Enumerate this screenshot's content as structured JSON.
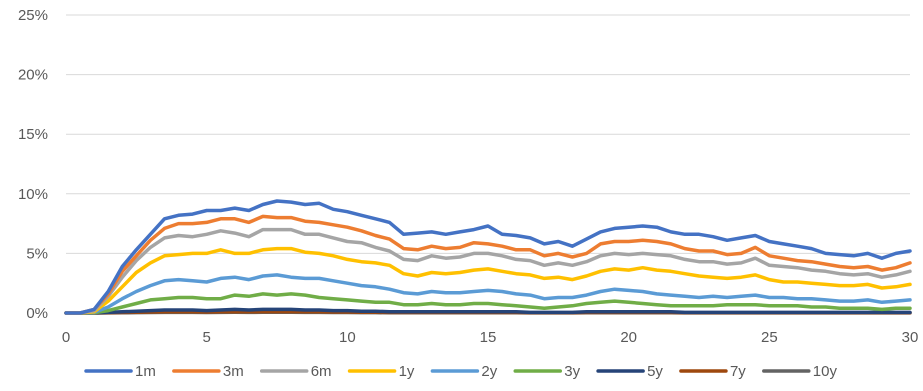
{
  "chart_data": {
    "type": "line",
    "title": "",
    "xlabel": "",
    "ylabel": "",
    "xlim": [
      0,
      30
    ],
    "ylim": [
      0,
      25
    ],
    "x_ticks": [
      0,
      5,
      10,
      15,
      20,
      25,
      30
    ],
    "y_ticks": [
      0,
      5,
      10,
      15,
      20,
      25
    ],
    "y_tick_labels": [
      "0%",
      "5%",
      "10%",
      "15%",
      "20%",
      "25%"
    ],
    "y_unit": "%",
    "grid": "horizontal",
    "legend_position": "bottom",
    "x": [
      0,
      0.5,
      1,
      1.5,
      2,
      2.5,
      3,
      3.5,
      4,
      4.5,
      5,
      5.5,
      6,
      6.5,
      7,
      7.5,
      8,
      8.5,
      9,
      9.5,
      10,
      10.5,
      11,
      11.5,
      12,
      12.5,
      13,
      13.5,
      14,
      14.5,
      15,
      15.5,
      16,
      16.5,
      17,
      17.5,
      18,
      18.5,
      19,
      19.5,
      20,
      20.5,
      21,
      21.5,
      22,
      22.5,
      23,
      23.5,
      24,
      24.5,
      25,
      25.5,
      26,
      26.5,
      27,
      27.5,
      28,
      28.5,
      29,
      29.5,
      30
    ],
    "series": [
      {
        "name": "1m",
        "color": "#4472C4",
        "values": [
          0,
          0,
          0.3,
          1.8,
          3.9,
          5.3,
          6.6,
          7.9,
          8.2,
          8.3,
          8.6,
          8.6,
          8.8,
          8.6,
          9.1,
          9.4,
          9.3,
          9.1,
          9.2,
          8.7,
          8.5,
          8.2,
          7.9,
          7.6,
          6.6,
          6.7,
          6.8,
          6.6,
          6.8,
          7.0,
          7.3,
          6.6,
          6.5,
          6.3,
          5.8,
          6.0,
          5.6,
          6.2,
          6.8,
          7.1,
          7.2,
          7.3,
          7.2,
          6.8,
          6.6,
          6.6,
          6.4,
          6.1,
          6.3,
          6.5,
          6.0,
          5.8,
          5.6,
          5.4,
          5.0,
          4.9,
          4.8,
          5.0,
          4.6,
          5.0,
          5.2
        ]
      },
      {
        "name": "3m",
        "color": "#ED7D31",
        "values": [
          0,
          0,
          0.3,
          1.6,
          3.5,
          4.8,
          6.1,
          7.1,
          7.5,
          7.5,
          7.6,
          7.9,
          7.9,
          7.6,
          8.1,
          8.0,
          8.0,
          7.7,
          7.6,
          7.4,
          7.2,
          6.9,
          6.5,
          6.2,
          5.4,
          5.3,
          5.6,
          5.4,
          5.5,
          5.9,
          5.8,
          5.6,
          5.3,
          5.3,
          4.8,
          5.0,
          4.7,
          5.0,
          5.8,
          6.0,
          6.0,
          6.1,
          6.0,
          5.8,
          5.4,
          5.2,
          5.2,
          4.9,
          5.0,
          5.5,
          4.8,
          4.6,
          4.4,
          4.3,
          4.1,
          3.9,
          3.8,
          3.9,
          3.6,
          3.8,
          4.2
        ]
      },
      {
        "name": "6m",
        "color": "#A5A5A5",
        "values": [
          0,
          0,
          0.2,
          1.4,
          3.0,
          4.4,
          5.5,
          6.3,
          6.5,
          6.4,
          6.6,
          6.9,
          6.7,
          6.4,
          7.0,
          7.0,
          7.0,
          6.6,
          6.6,
          6.3,
          6.0,
          5.9,
          5.5,
          5.2,
          4.5,
          4.4,
          4.8,
          4.6,
          4.7,
          5.0,
          5.0,
          4.8,
          4.5,
          4.4,
          4.0,
          4.2,
          4.0,
          4.3,
          4.8,
          5.0,
          4.9,
          5.0,
          4.9,
          4.8,
          4.5,
          4.3,
          4.3,
          4.1,
          4.2,
          4.6,
          4.0,
          3.9,
          3.8,
          3.6,
          3.5,
          3.3,
          3.2,
          3.3,
          3.0,
          3.2,
          3.5
        ]
      },
      {
        "name": "1y",
        "color": "#FFC000",
        "values": [
          0,
          0,
          0.1,
          1.0,
          2.2,
          3.4,
          4.2,
          4.8,
          4.9,
          5.0,
          5.0,
          5.3,
          5.0,
          5.0,
          5.3,
          5.4,
          5.4,
          5.1,
          5.0,
          4.8,
          4.5,
          4.3,
          4.2,
          4.0,
          3.3,
          3.1,
          3.4,
          3.3,
          3.4,
          3.6,
          3.7,
          3.5,
          3.3,
          3.2,
          2.9,
          3.0,
          2.8,
          3.1,
          3.5,
          3.7,
          3.6,
          3.8,
          3.6,
          3.5,
          3.3,
          3.1,
          3.0,
          2.9,
          3.0,
          3.2,
          2.8,
          2.6,
          2.6,
          2.5,
          2.4,
          2.3,
          2.3,
          2.4,
          2.1,
          2.2,
          2.4
        ]
      },
      {
        "name": "2y",
        "color": "#5B9BD5",
        "values": [
          0,
          0,
          0.05,
          0.5,
          1.2,
          1.8,
          2.3,
          2.7,
          2.8,
          2.7,
          2.6,
          2.9,
          3.0,
          2.8,
          3.1,
          3.2,
          3.0,
          2.9,
          2.9,
          2.7,
          2.5,
          2.3,
          2.2,
          2.0,
          1.7,
          1.6,
          1.8,
          1.7,
          1.7,
          1.8,
          1.9,
          1.8,
          1.6,
          1.5,
          1.2,
          1.3,
          1.3,
          1.5,
          1.8,
          2.0,
          1.9,
          1.8,
          1.6,
          1.5,
          1.4,
          1.3,
          1.4,
          1.3,
          1.4,
          1.5,
          1.3,
          1.3,
          1.2,
          1.2,
          1.1,
          1.0,
          1.0,
          1.1,
          0.9,
          1.0,
          1.1
        ]
      },
      {
        "name": "3y",
        "color": "#70AD47",
        "values": [
          0,
          0,
          0.02,
          0.2,
          0.5,
          0.8,
          1.1,
          1.2,
          1.3,
          1.3,
          1.2,
          1.2,
          1.5,
          1.4,
          1.6,
          1.5,
          1.6,
          1.5,
          1.3,
          1.2,
          1.1,
          1.0,
          0.9,
          0.9,
          0.7,
          0.7,
          0.8,
          0.7,
          0.7,
          0.8,
          0.8,
          0.7,
          0.6,
          0.5,
          0.4,
          0.5,
          0.6,
          0.8,
          0.9,
          1.0,
          0.9,
          0.8,
          0.7,
          0.6,
          0.6,
          0.6,
          0.6,
          0.7,
          0.7,
          0.7,
          0.6,
          0.6,
          0.6,
          0.5,
          0.5,
          0.4,
          0.4,
          0.4,
          0.3,
          0.4,
          0.4
        ]
      },
      {
        "name": "5y",
        "color": "#264478",
        "values": [
          0,
          0,
          0.01,
          0.05,
          0.1,
          0.15,
          0.2,
          0.25,
          0.25,
          0.25,
          0.2,
          0.25,
          0.3,
          0.25,
          0.3,
          0.3,
          0.3,
          0.25,
          0.25,
          0.2,
          0.2,
          0.15,
          0.15,
          0.1,
          0.1,
          0.1,
          0.1,
          0.1,
          0.1,
          0.1,
          0.1,
          0.1,
          0.1,
          0.05,
          0.05,
          0.05,
          0.05,
          0.1,
          0.1,
          0.1,
          0.1,
          0.1,
          0.1,
          0.1,
          0.05,
          0.05,
          0.05,
          0.05,
          0.05,
          0.05,
          0.05,
          0.05,
          0.05,
          0.05,
          0.05,
          0.05,
          0.05,
          0.05,
          0.05,
          0.05,
          0.05
        ]
      },
      {
        "name": "7y",
        "color": "#9E480E",
        "values": [
          0,
          0,
          0,
          0.02,
          0.04,
          0.06,
          0.08,
          0.1,
          0.1,
          0.1,
          0.08,
          0.1,
          0.12,
          0.1,
          0.12,
          0.12,
          0.12,
          0.1,
          0.1,
          0.08,
          0.08,
          0.06,
          0.06,
          0.04,
          0.04,
          0.04,
          0.04,
          0.04,
          0.04,
          0.04,
          0.04,
          0.04,
          0.04,
          0.02,
          0.02,
          0.02,
          0.02,
          0.04,
          0.04,
          0.04,
          0.04,
          0.04,
          0.04,
          0.04,
          0.02,
          0.02,
          0.02,
          0.02,
          0.02,
          0.02,
          0.02,
          0.02,
          0.02,
          0.02,
          0.02,
          0.02,
          0.02,
          0.02,
          0.02,
          0.02,
          0.02
        ]
      },
      {
        "name": "10y",
        "color": "#636363",
        "values": [
          0,
          0,
          0,
          0.01,
          0.02,
          0.03,
          0.04,
          0.05,
          0.05,
          0.05,
          0.04,
          0.05,
          0.06,
          0.05,
          0.06,
          0.06,
          0.06,
          0.05,
          0.05,
          0.04,
          0.04,
          0.03,
          0.03,
          0.02,
          0.02,
          0.02,
          0.02,
          0.02,
          0.02,
          0.02,
          0.02,
          0.02,
          0.02,
          0.01,
          0.01,
          0.01,
          0.01,
          0.02,
          0.02,
          0.02,
          0.02,
          0.02,
          0.02,
          0.02,
          0.01,
          0.01,
          0.01,
          0.01,
          0.01,
          0.01,
          0.01,
          0.01,
          0.01,
          0.01,
          0.01,
          0.01,
          0.01,
          0.01,
          0.01,
          0.01,
          0.01
        ]
      }
    ]
  }
}
